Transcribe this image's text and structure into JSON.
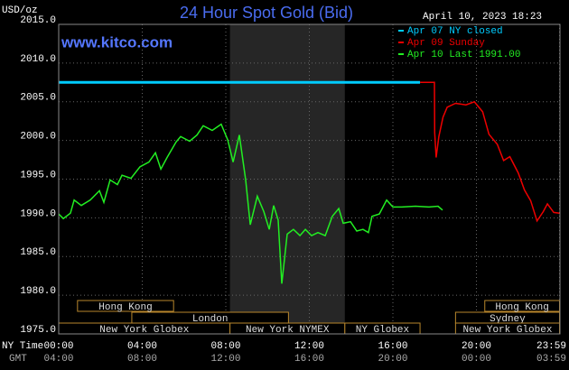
{
  "chart_data": {
    "type": "line",
    "title": "24 Hour Spot Gold (Bid)",
    "date": "April 10, 2023 18:23",
    "watermark": "www.kitco.com",
    "y_label": "USD/oz",
    "x_label": "NY Time",
    "x2_label": "GMT",
    "xlim": [
      0,
      24
    ],
    "ylim": [
      1975,
      2015
    ],
    "yticks": [
      {
        "value": 2015,
        "label": "2015.0"
      },
      {
        "value": 2010,
        "label": "2010.0"
      },
      {
        "value": 2005,
        "label": "2005.0"
      },
      {
        "value": 2000,
        "label": "2000.0"
      },
      {
        "value": 1995,
        "label": "1995.0"
      },
      {
        "value": 1990,
        "label": "1990.0"
      },
      {
        "value": 1985,
        "label": "1985.0"
      },
      {
        "value": 1980,
        "label": "1980.0"
      },
      {
        "value": 1975,
        "label": "1975.0"
      }
    ],
    "xticks": [
      {
        "value": 0,
        "label": "00:00"
      },
      {
        "value": 4,
        "label": "04:00"
      },
      {
        "value": 8,
        "label": "08:00"
      },
      {
        "value": 12,
        "label": "12:00"
      },
      {
        "value": 16,
        "label": "16:00"
      },
      {
        "value": 20,
        "label": "20:00"
      },
      {
        "value": 23.98,
        "label": "23:59"
      }
    ],
    "x2tick_labels": [
      "04:00",
      "08:00",
      "12:00",
      "16:00",
      "20:00",
      "00:00",
      "03:59"
    ],
    "grid": true,
    "shaded_session": "chart_data.sessions.2.1",
    "sessions": [
      [
        {
          "label": "Hong Kong",
          "start": 0.9,
          "end": 5.5
        },
        {
          "label": "Hong Kong",
          "start": 20.4,
          "end": 23.98
        }
      ],
      [
        {
          "label": "London",
          "start": 3.5,
          "end": 11.0
        },
        {
          "label": "Sydney",
          "start": 19.0,
          "end": 23.98
        }
      ],
      [
        {
          "label": "New York Globex",
          "start": 0,
          "end": 8.2
        },
        {
          "label": "New York NYMEX",
          "start": 8.2,
          "end": 13.7
        },
        {
          "label": "NY Globex",
          "start": 13.7,
          "end": 17.3
        },
        {
          "label": "New York Globex",
          "start": 19.0,
          "end": 23.98
        }
      ]
    ],
    "series": [
      {
        "name": "Apr 07 NY closed",
        "color": "#00ccff",
        "x": [
          0,
          17.3
        ],
        "values": [
          2007.5,
          2007.5
        ]
      },
      {
        "name": "Apr 09 Sunday",
        "color": "#ee0000",
        "x": [
          17.3,
          17.99,
          18.0,
          18.07,
          18.2,
          18.4,
          18.6,
          19.0,
          19.5,
          19.9,
          20.3,
          20.6,
          21.0,
          21.3,
          21.6,
          22.0,
          22.3,
          22.6,
          22.9,
          23.2,
          23.4,
          23.7,
          23.98
        ],
        "values": [
          2007.5,
          2007.5,
          2001,
          1997.8,
          2000.5,
          2003.0,
          2004.3,
          2004.8,
          2004.6,
          2005,
          2003.7,
          2000.8,
          1999.5,
          1997.4,
          1997.9,
          1995.8,
          1993.6,
          1992.2,
          1989.6,
          1990.8,
          1991.8,
          1990.7,
          1990.6
        ]
      },
      {
        "name": "Apr 10 Last 1991.00",
        "color": "#22ee22",
        "x": [
          0,
          0.22,
          0.56,
          0.74,
          1.08,
          1.51,
          1.95,
          2.16,
          2.46,
          2.81,
          3.03,
          3.46,
          3.89,
          4.32,
          4.63,
          4.89,
          5.19,
          5.62,
          5.84,
          6.27,
          6.62,
          6.92,
          7.35,
          7.78,
          8.09,
          8.35,
          8.65,
          8.95,
          9.17,
          9.51,
          9.82,
          10.08,
          10.29,
          10.51,
          10.68,
          10.94,
          11.24,
          11.55,
          11.81,
          12.11,
          12.41,
          12.76,
          13.1,
          13.41,
          13.62,
          13.97,
          14.27,
          14.57,
          14.83,
          15.0,
          15.35,
          15.7,
          16.0,
          16.43,
          17.08,
          17.73,
          18.16,
          18.38
        ],
        "values": [
          1990.5,
          1989.9,
          1990.6,
          1992.3,
          1991.6,
          1992.3,
          1993.5,
          1992.0,
          1994.9,
          1994.3,
          1995.5,
          1995.1,
          1996.6,
          1997.2,
          1998.4,
          1996.3,
          1997.8,
          1999.8,
          2000.5,
          1999.9,
          2000.7,
          2001.9,
          2001.3,
          2002.1,
          2000.1,
          1997.2,
          2000.7,
          1994.9,
          1989.1,
          1992.8,
          1990.8,
          1988.5,
          1991.6,
          1989.7,
          1981.5,
          1987.9,
          1988.5,
          1987.7,
          1988.5,
          1987.7,
          1988.1,
          1987.7,
          1990.2,
          1991.2,
          1989.3,
          1989.5,
          1988.3,
          1988.5,
          1988.1,
          1990.2,
          1990.5,
          1992.3,
          1991.4,
          1991.4,
          1991.5,
          1991.4,
          1991.5,
          1991.0
        ]
      }
    ]
  }
}
